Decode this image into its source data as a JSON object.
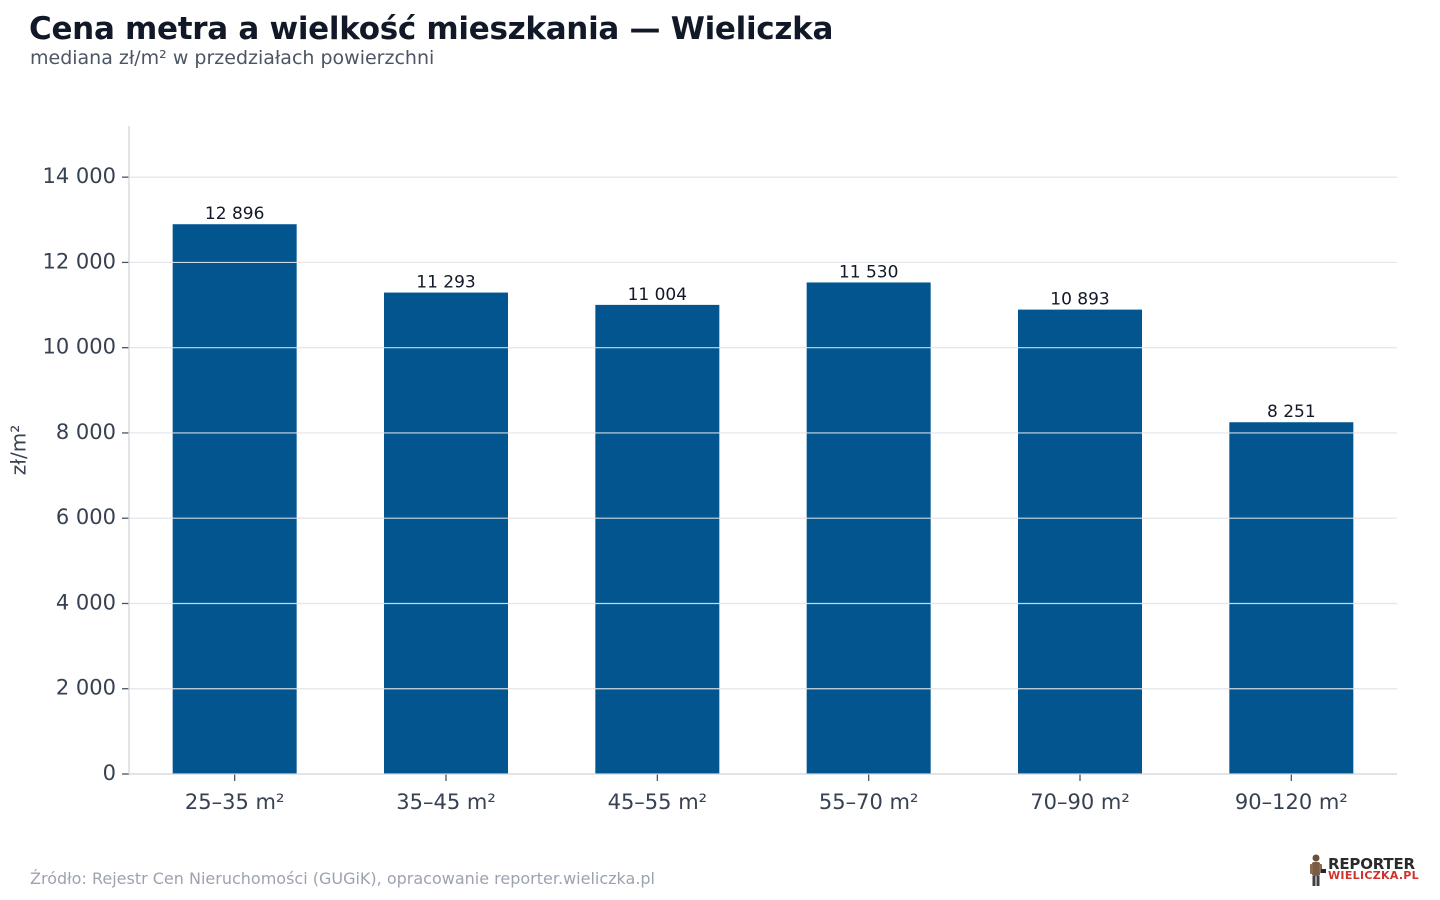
{
  "title": "Cena metra a wielkość mieszkania — Wieliczka",
  "subtitle": "mediana zł/m² w przedziałach powierzchni",
  "source": "Źródło: Rejestr Cen Nieruchomości (GUGiK), opracowanie reporter.wieliczka.pl",
  "logo": {
    "top": "REPORTER",
    "bottom": "WIELICZKA.PL"
  },
  "colors": {
    "bar": "#02558f",
    "grid": "#e5e7eb",
    "axis": "#4b5563"
  },
  "chart_data": {
    "type": "bar",
    "categories": [
      "25–35 m²",
      "35–45 m²",
      "45–55 m²",
      "55–70 m²",
      "70–90 m²",
      "90–120 m²"
    ],
    "values": [
      12896,
      11293,
      11004,
      11530,
      10893,
      8251
    ],
    "value_labels": [
      "12 896",
      "11 293",
      "11 004",
      "11 530",
      "10 893",
      "8 251"
    ],
    "ylabel": "zł/m²",
    "ylim": [
      0,
      15200
    ],
    "yticks": [
      0,
      2000,
      4000,
      6000,
      8000,
      10000,
      12000,
      14000
    ],
    "ytick_labels": [
      "0",
      "2 000",
      "4 000",
      "6 000",
      "8 000",
      "10 000",
      "12 000",
      "14 000"
    ],
    "grid": true
  }
}
